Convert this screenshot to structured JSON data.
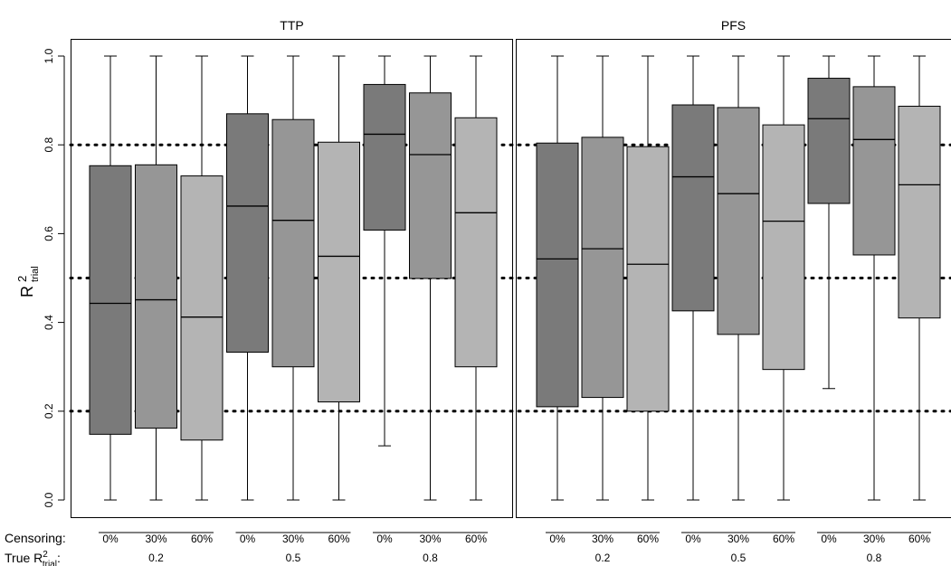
{
  "chart_data": {
    "type": "boxplot",
    "ylabel": "R",
    "ylabel_sup": "2",
    "ylabel_sub": "trial",
    "ylim": [
      0.0,
      1.0
    ],
    "yticks": [
      "0.0",
      "0.2",
      "0.4",
      "0.6",
      "0.8",
      "1.0"
    ],
    "reference_lines": [
      0.2,
      0.5,
      0.8
    ],
    "censoring_label": "Censoring:",
    "true_r2_label_prefix": "True R",
    "true_r2_label_sup": "2",
    "true_r2_label_sub": "trial",
    "true_r2_label_suffix": ":",
    "colors": {
      "0%": "#7a7a7a",
      "30%": "#969696",
      "60%": "#b4b4b4",
      "line": "#000000"
    },
    "panels": [
      {
        "title": "TTP",
        "groups": [
          {
            "label": "0.2",
            "boxes": [
              {
                "censoring": "0%",
                "min": 0.0,
                "q1": 0.148,
                "median": 0.443,
                "q3": 0.753,
                "max": 1.0
              },
              {
                "censoring": "30%",
                "min": 0.0,
                "q1": 0.162,
                "median": 0.451,
                "q3": 0.755,
                "max": 1.0
              },
              {
                "censoring": "60%",
                "min": 0.0,
                "q1": 0.135,
                "median": 0.412,
                "q3": 0.73,
                "max": 1.0
              }
            ]
          },
          {
            "label": "0.5",
            "boxes": [
              {
                "censoring": "0%",
                "min": 0.0,
                "q1": 0.333,
                "median": 0.662,
                "q3": 0.87,
                "max": 1.0
              },
              {
                "censoring": "30%",
                "min": 0.0,
                "q1": 0.3,
                "median": 0.63,
                "q3": 0.857,
                "max": 1.0
              },
              {
                "censoring": "60%",
                "min": 0.0,
                "q1": 0.221,
                "median": 0.549,
                "q3": 0.806,
                "max": 1.0
              }
            ]
          },
          {
            "label": "0.8",
            "boxes": [
              {
                "censoring": "0%",
                "min": 0.122,
                "q1": 0.608,
                "median": 0.824,
                "q3": 0.936,
                "max": 1.0
              },
              {
                "censoring": "30%",
                "min": 0.0,
                "q1": 0.499,
                "median": 0.778,
                "q3": 0.917,
                "max": 1.0
              },
              {
                "censoring": "60%",
                "min": 0.0,
                "q1": 0.3,
                "median": 0.647,
                "q3": 0.861,
                "max": 1.0
              }
            ]
          }
        ]
      },
      {
        "title": "PFS",
        "groups": [
          {
            "label": "0.2",
            "boxes": [
              {
                "censoring": "0%",
                "min": 0.0,
                "q1": 0.21,
                "median": 0.543,
                "q3": 0.804,
                "max": 1.0
              },
              {
                "censoring": "30%",
                "min": 0.0,
                "q1": 0.231,
                "median": 0.566,
                "q3": 0.817,
                "max": 1.0
              },
              {
                "censoring": "60%",
                "min": 0.0,
                "q1": 0.2,
                "median": 0.531,
                "q3": 0.796,
                "max": 1.0
              }
            ]
          },
          {
            "label": "0.5",
            "boxes": [
              {
                "censoring": "0%",
                "min": 0.0,
                "q1": 0.426,
                "median": 0.728,
                "q3": 0.89,
                "max": 1.0
              },
              {
                "censoring": "30%",
                "min": 0.0,
                "q1": 0.373,
                "median": 0.69,
                "q3": 0.884,
                "max": 1.0
              },
              {
                "censoring": "60%",
                "min": 0.0,
                "q1": 0.294,
                "median": 0.628,
                "q3": 0.845,
                "max": 1.0
              }
            ]
          },
          {
            "label": "0.8",
            "boxes": [
              {
                "censoring": "0%",
                "min": 0.251,
                "q1": 0.668,
                "median": 0.859,
                "q3": 0.95,
                "max": 1.0
              },
              {
                "censoring": "30%",
                "min": 0.0,
                "q1": 0.552,
                "median": 0.812,
                "q3": 0.931,
                "max": 1.0
              },
              {
                "censoring": "60%",
                "min": 0.0,
                "q1": 0.41,
                "median": 0.71,
                "q3": 0.887,
                "max": 1.0
              }
            ]
          }
        ]
      }
    ]
  }
}
